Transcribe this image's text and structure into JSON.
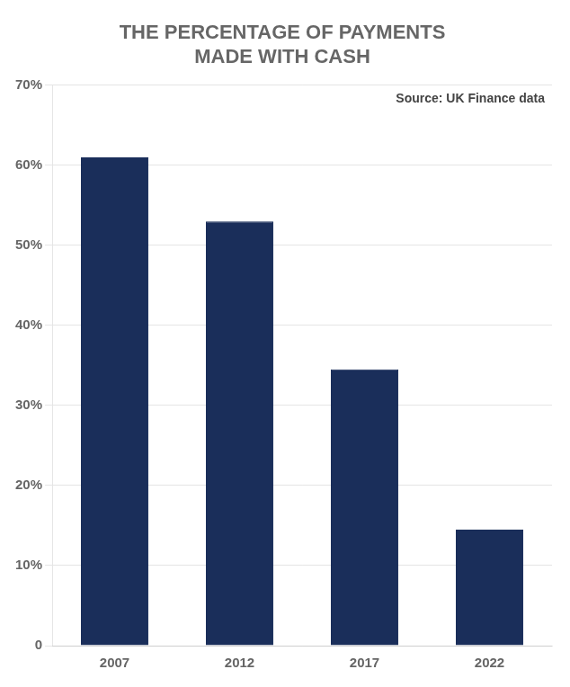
{
  "chart_data": {
    "type": "bar",
    "title": "THE PERCENTAGE OF PAYMENTS\nMADE WITH CASH",
    "annotations": [
      "Source: UK Finance data"
    ],
    "categories": [
      "2007",
      "2012",
      "2017",
      "2022"
    ],
    "values": [
      61,
      53,
      34.5,
      14.5
    ],
    "color": "#1a2e5a",
    "ylim": [
      0,
      70
    ],
    "yticks": [
      0,
      {
        "value": 10,
        "label": "10%"
      },
      {
        "value": 20,
        "label": "20%"
      },
      {
        "value": 30,
        "label": "30%"
      },
      {
        "value": 40,
        "label": "40%"
      },
      {
        "value": 50,
        "label": "50%"
      },
      {
        "value": 60,
        "label": "60%"
      },
      {
        "value": 70,
        "label": "70%"
      }
    ],
    "grid": true
  }
}
